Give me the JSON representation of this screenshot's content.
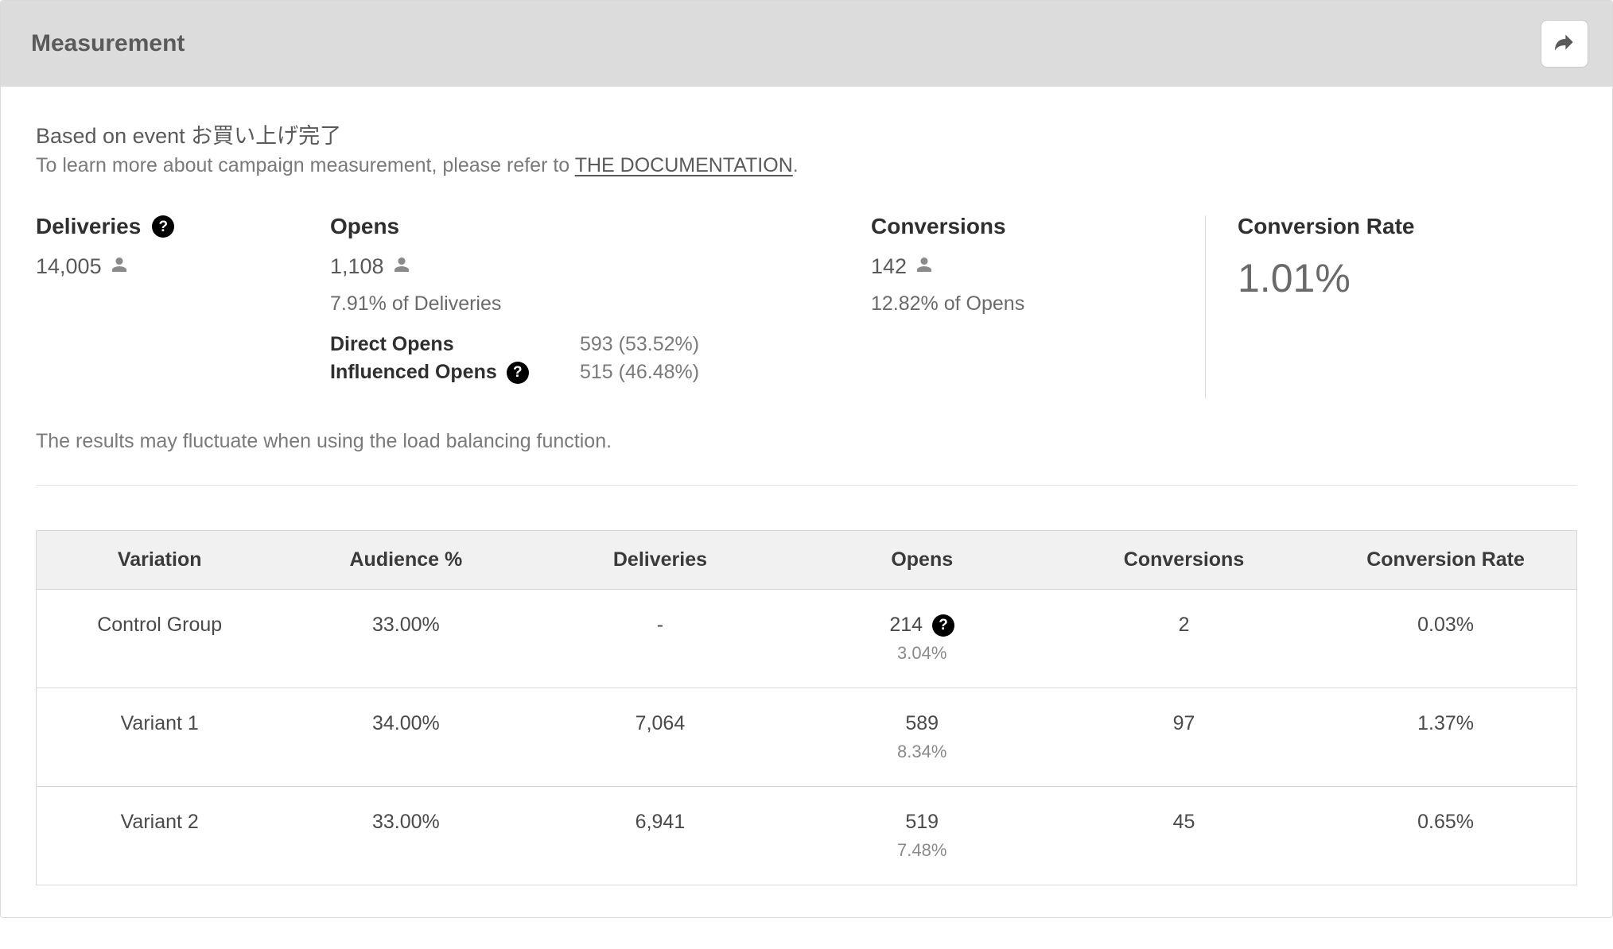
{
  "colors": {
    "header_bg": "#dcdcdc",
    "border": "#d9d9d9",
    "text_primary": "#3a3a3a",
    "text_muted": "#7a7a7a",
    "help_bg": "#000000",
    "help_fg": "#ffffff",
    "table_header_bg": "#f1f1f1"
  },
  "header": {
    "title": "Measurement"
  },
  "intro": {
    "line1_prefix": "Based on event ",
    "line1_event": "お買い上げ完了",
    "line2_prefix": "To learn more about campaign measurement, please refer to ",
    "doc_link_text": "THE DOCUMENTATION",
    "line2_suffix": "."
  },
  "metrics": {
    "deliveries": {
      "label": "Deliveries",
      "value": "14,005"
    },
    "opens": {
      "label": "Opens",
      "value": "1,108",
      "sub": "7.91% of Deliveries",
      "breakdown": {
        "direct": {
          "label": "Direct Opens",
          "value": "593 (53.52%)"
        },
        "influenced": {
          "label": "Influenced Opens",
          "value": "515 (46.48%)"
        }
      }
    },
    "conversions": {
      "label": "Conversions",
      "value": "142",
      "sub": "12.82% of Opens"
    },
    "conversion_rate": {
      "label": "Conversion Rate",
      "value": "1.01%"
    }
  },
  "note": "The results may fluctuate when using the load balancing function.",
  "table": {
    "columns": [
      "Variation",
      "Audience %",
      "Deliveries",
      "Opens",
      "Conversions",
      "Conversion Rate"
    ],
    "column_widths_pct": [
      16,
      16,
      17,
      17,
      17,
      17
    ],
    "rows": [
      {
        "variation": "Control Group",
        "audience": "33.00%",
        "deliveries": "-",
        "opens": "214",
        "opens_help": true,
        "opens_pct": "3.04%",
        "conversions": "2",
        "conv_rate": "0.03%"
      },
      {
        "variation": "Variant 1",
        "audience": "34.00%",
        "deliveries": "7,064",
        "opens": "589",
        "opens_help": false,
        "opens_pct": "8.34%",
        "conversions": "97",
        "conv_rate": "1.37%"
      },
      {
        "variation": "Variant 2",
        "audience": "33.00%",
        "deliveries": "6,941",
        "opens": "519",
        "opens_help": false,
        "opens_pct": "7.48%",
        "conversions": "45",
        "conv_rate": "0.65%"
      }
    ]
  }
}
